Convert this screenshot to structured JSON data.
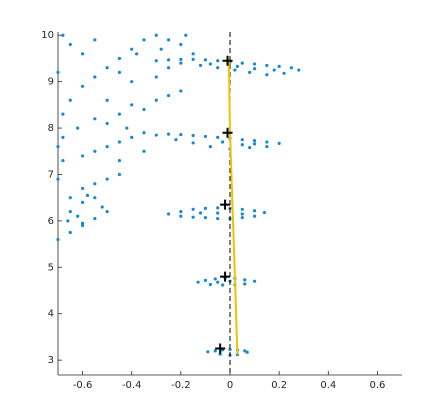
{
  "chart_data": {
    "type": "scatter",
    "xlim": [
      -0.7,
      0.7
    ],
    "ylim": [
      2.68,
      10.07
    ],
    "xticks": [
      -0.6,
      -0.4,
      -0.2,
      0,
      0.2,
      0.4,
      0.6
    ],
    "yticks": [
      3,
      4,
      5,
      6,
      7,
      8,
      9,
      10
    ],
    "vline": 0,
    "scatter": {
      "color": "#1689cf",
      "points": [
        [
          -0.3,
          9.45
        ],
        [
          -0.25,
          9.47
        ],
        [
          -0.2,
          9.48
        ],
        [
          -0.15,
          9.48
        ],
        [
          -0.1,
          9.47
        ],
        [
          -0.05,
          9.45
        ],
        [
          0,
          9.42
        ],
        [
          0.05,
          9.4
        ],
        [
          0.1,
          9.38
        ],
        [
          0.15,
          9.35
        ],
        [
          0.2,
          9.33
        ],
        [
          0.25,
          9.3
        ],
        [
          0.28,
          9.25
        ],
        [
          0.22,
          9.18
        ],
        [
          0.15,
          9.15
        ],
        [
          0.08,
          9.2
        ],
        [
          0.02,
          9.25
        ],
        [
          -0.05,
          9.3
        ],
        [
          -0.12,
          9.35
        ],
        [
          -0.2,
          9.4
        ],
        [
          0.1,
          9.28
        ],
        [
          0.18,
          9.25
        ],
        [
          -0.08,
          9.38
        ],
        [
          0.03,
          9.33
        ],
        [
          -0.3,
          7.85
        ],
        [
          -0.25,
          7.87
        ],
        [
          -0.2,
          7.86
        ],
        [
          -0.15,
          7.84
        ],
        [
          -0.1,
          7.82
        ],
        [
          -0.05,
          7.8
        ],
        [
          0,
          7.78
        ],
        [
          0.05,
          7.75
        ],
        [
          0.1,
          7.73
        ],
        [
          0.15,
          7.7
        ],
        [
          0.2,
          7.67
        ],
        [
          0.15,
          7.6
        ],
        [
          0.08,
          7.58
        ],
        [
          0,
          7.55
        ],
        [
          -0.08,
          7.6
        ],
        [
          -0.15,
          7.68
        ],
        [
          -0.22,
          7.75
        ],
        [
          0.1,
          7.66
        ],
        [
          -0.03,
          7.7
        ],
        [
          0.05,
          7.64
        ],
        [
          -0.25,
          6.15
        ],
        [
          -0.2,
          6.2
        ],
        [
          -0.15,
          6.25
        ],
        [
          -0.1,
          6.27
        ],
        [
          -0.05,
          6.28
        ],
        [
          0,
          6.27
        ],
        [
          0.05,
          6.25
        ],
        [
          0.1,
          6.22
        ],
        [
          0.14,
          6.18
        ],
        [
          0.1,
          6.1
        ],
        [
          0.05,
          6.07
        ],
        [
          0,
          6.05
        ],
        [
          -0.05,
          6.05
        ],
        [
          -0.1,
          6.07
        ],
        [
          -0.15,
          6.08
        ],
        [
          -0.2,
          6.1
        ],
        [
          -0.05,
          6.17
        ],
        [
          0.05,
          6.15
        ],
        [
          -0.12,
          6.17
        ],
        [
          -0.13,
          4.68
        ],
        [
          -0.1,
          4.72
        ],
        [
          -0.06,
          4.75
        ],
        [
          -0.02,
          4.77
        ],
        [
          0.02,
          4.76
        ],
        [
          0.06,
          4.73
        ],
        [
          0.1,
          4.7
        ],
        [
          0.06,
          4.64
        ],
        [
          0.02,
          4.62
        ],
        [
          -0.03,
          4.62
        ],
        [
          -0.08,
          4.63
        ],
        [
          0,
          4.7
        ],
        [
          -0.05,
          4.68
        ],
        [
          -0.09,
          3.18
        ],
        [
          -0.06,
          3.2
        ],
        [
          -0.03,
          3.22
        ],
        [
          0,
          3.23
        ],
        [
          0.03,
          3.22
        ],
        [
          0.06,
          3.2
        ],
        [
          0.07,
          3.17
        ],
        [
          0.03,
          3.12
        ],
        [
          0,
          3.11
        ],
        [
          -0.04,
          3.13
        ],
        [
          -0.7,
          5.6
        ],
        [
          -0.65,
          5.75
        ],
        [
          -0.6,
          5.9
        ],
        [
          -0.55,
          6.05
        ],
        [
          -0.5,
          6.2
        ],
        [
          -0.52,
          6.3
        ],
        [
          -0.6,
          6.4
        ],
        [
          -0.65,
          6.5
        ],
        [
          -0.6,
          6.7
        ],
        [
          -0.55,
          6.8
        ],
        [
          -0.5,
          6.9
        ],
        [
          -0.45,
          7.0
        ],
        [
          -0.7,
          6.9
        ],
        [
          -0.68,
          7.3
        ],
        [
          -0.6,
          7.4
        ],
        [
          -0.55,
          7.5
        ],
        [
          -0.5,
          7.6
        ],
        [
          -0.45,
          7.7
        ],
        [
          -0.4,
          7.8
        ],
        [
          -0.35,
          7.9
        ],
        [
          -0.68,
          7.8
        ],
        [
          -0.62,
          8.0
        ],
        [
          -0.55,
          8.2
        ],
        [
          -0.5,
          8.1
        ],
        [
          -0.45,
          8.3
        ],
        [
          -0.4,
          8.5
        ],
        [
          -0.35,
          8.4
        ],
        [
          -0.3,
          8.6
        ],
        [
          -0.25,
          8.7
        ],
        [
          -0.2,
          8.8
        ],
        [
          -0.65,
          8.6
        ],
        [
          -0.6,
          8.9
        ],
        [
          -0.55,
          9.1
        ],
        [
          -0.5,
          9.3
        ],
        [
          -0.45,
          9.5
        ],
        [
          -0.4,
          9.7
        ],
        [
          -0.35,
          9.9
        ],
        [
          -0.3,
          10.0
        ],
        [
          -0.25,
          9.9
        ],
        [
          -0.2,
          9.8
        ],
        [
          -0.15,
          9.6
        ],
        [
          -0.6,
          9.6
        ],
        [
          -0.65,
          9.8
        ],
        [
          -0.55,
          9.9
        ],
        [
          -0.45,
          9.2
        ],
        [
          -0.4,
          9.0
        ],
        [
          -0.3,
          9.1
        ],
        [
          -0.25,
          9.3
        ],
        [
          -0.6,
          5.95
        ],
        [
          -0.65,
          6.2
        ],
        [
          -0.55,
          6.5
        ],
        [
          -0.45,
          7.3
        ],
        [
          -0.35,
          7.5
        ],
        [
          -0.5,
          8.6
        ],
        [
          -0.42,
          8.0
        ],
        [
          -0.38,
          9.6
        ],
        [
          -0.28,
          9.7
        ],
        [
          -0.18,
          10.0
        ],
        [
          -0.68,
          10.0
        ],
        [
          -0.7,
          9.2
        ],
        [
          -0.68,
          8.3
        ],
        [
          -0.7,
          7.6
        ],
        [
          -0.66,
          6.0
        ],
        [
          -0.62,
          6.1
        ],
        [
          -0.58,
          6.55
        ]
      ]
    },
    "markers": {
      "color": "#000000",
      "points": [
        [
          -0.01,
          9.45
        ],
        [
          -0.01,
          7.9
        ],
        [
          -0.02,
          6.35
        ],
        [
          -0.02,
          4.8
        ],
        [
          -0.04,
          3.25
        ]
      ]
    },
    "path": {
      "color": "#f5c000",
      "points": [
        [
          -0.005,
          9.5
        ],
        [
          0.0,
          7.9
        ],
        [
          0.01,
          6.35
        ],
        [
          0.02,
          4.8
        ],
        [
          0.03,
          3.12
        ]
      ]
    }
  }
}
